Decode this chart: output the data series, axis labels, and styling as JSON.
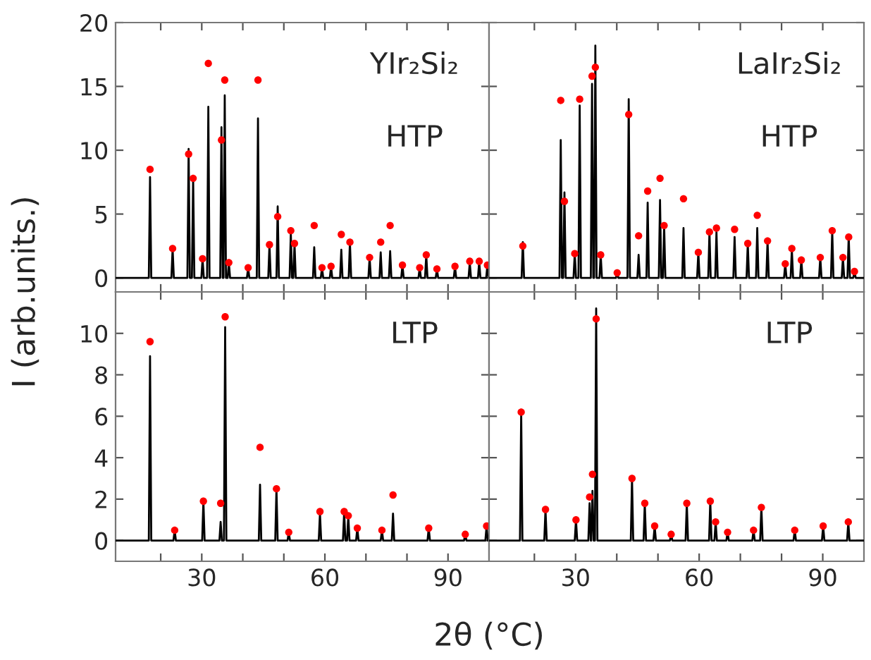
{
  "chart_data": [
    {
      "type": "line",
      "ylabel": "I (arb.units.)",
      "annotations": [
        "YIr₂Si₂",
        "HTP"
      ],
      "xlim": [
        9,
        100
      ],
      "ylim": [
        -1.1,
        20
      ],
      "xticks": [
        {
          "value": 20,
          "label": null
        },
        30,
        {
          "value": 40,
          "label": null
        },
        {
          "value": 50,
          "label": null
        },
        60,
        {
          "value": 70,
          "label": null
        },
        {
          "value": 80,
          "label": null
        },
        90
      ],
      "yticks": [
        0,
        5,
        10,
        15,
        20
      ],
      "tick_labels": "y",
      "series": [
        {
          "type": "scatter",
          "color": "#ff0000",
          "marker": "circle",
          "x": [
            17.4,
            22.9,
            26.8,
            27.9,
            30.2,
            31.6,
            34.8,
            35.6,
            36.6,
            41.3,
            43.7,
            46.5,
            48.5,
            51.7,
            52.6,
            57.4,
            59.3,
            61.5,
            64.0,
            66.1,
            70.9,
            73.6,
            75.9,
            78.9,
            83.1,
            84.7,
            87.3,
            91.7,
            95.3,
            97.6,
            99.6
          ],
          "values": [
            8.5,
            2.3,
            9.7,
            7.8,
            1.5,
            16.8,
            10.8,
            15.5,
            1.2,
            0.8,
            15.5,
            2.6,
            4.8,
            3.7,
            2.7,
            4.1,
            0.8,
            0.9,
            3.4,
            2.8,
            1.6,
            2.8,
            4.1,
            1.0,
            0.8,
            1.8,
            0.7,
            0.9,
            1.3,
            1.3,
            1.0
          ]
        },
        {
          "color": "#000000",
          "x": [
            9,
            17.1,
            17.4,
            17.7,
            22.6,
            22.9,
            23.2,
            26.5,
            26.8,
            27.1,
            27.6,
            27.9,
            28.2,
            29.9,
            30.2,
            30.5,
            31.3,
            31.6,
            31.9,
            34.5,
            34.8,
            35.1,
            35.3,
            35.6,
            35.9,
            36.3,
            36.6,
            36.9,
            41.0,
            41.3,
            41.6,
            43.4,
            43.7,
            44.0,
            46.2,
            46.5,
            46.8,
            48.2,
            48.5,
            48.8,
            51.4,
            51.7,
            52.0,
            52.3,
            52.6,
            52.9,
            57.1,
            57.4,
            57.7,
            59.0,
            59.3,
            59.6,
            61.2,
            61.5,
            61.8,
            63.7,
            64.0,
            64.3,
            65.8,
            66.1,
            66.4,
            70.6,
            70.9,
            71.2,
            73.3,
            73.6,
            73.9,
            75.6,
            75.9,
            76.2,
            78.6,
            78.9,
            79.2,
            82.8,
            83.1,
            83.4,
            84.4,
            84.7,
            85.0,
            87.0,
            87.3,
            87.6,
            91.4,
            91.7,
            92.0,
            95.0,
            95.3,
            95.6,
            97.3,
            97.6,
            97.9,
            99.3,
            99.6,
            99.9
          ],
          "values": [
            0,
            0,
            7.9,
            0,
            0,
            2.3,
            0,
            0,
            10.1,
            0,
            0,
            7.8,
            0,
            0,
            1.5,
            0,
            0,
            13.4,
            0,
            0,
            11.8,
            0,
            0,
            14.3,
            0,
            0,
            1.2,
            0,
            0,
            0.8,
            0,
            0,
            12.5,
            0,
            0,
            2.6,
            0,
            0,
            5.6,
            0,
            0,
            3.5,
            0,
            0,
            2.7,
            0,
            0,
            2.4,
            0,
            0,
            0.8,
            0,
            0,
            0.9,
            0,
            0,
            2.2,
            0,
            0,
            2.8,
            0,
            0,
            1.6,
            0,
            0,
            2.0,
            0,
            0,
            2.1,
            0,
            0,
            1.0,
            0,
            0,
            0.8,
            0,
            0,
            1.8,
            0,
            0,
            0.7,
            0,
            0,
            0.9,
            0,
            0,
            1.2,
            0,
            0,
            1.3,
            0,
            0,
            1.0,
            0
          ]
        }
      ]
    },
    {
      "type": "line",
      "annotations": [
        "LaIr₂Si₂",
        "HTP"
      ],
      "xlim": [
        9,
        100
      ],
      "ylim": [
        -1.1,
        20
      ],
      "xticks": [
        {
          "value": 20,
          "label": null
        },
        30,
        {
          "value": 40,
          "label": null
        },
        {
          "value": 50,
          "label": null
        },
        60,
        {
          "value": 70,
          "label": null
        },
        {
          "value": 80,
          "label": null
        },
        90
      ],
      "yticks": [
        0,
        5,
        10,
        15,
        20
      ],
      "tick_labels": false,
      "series": [
        {
          "type": "scatter",
          "color": "#ff0000",
          "marker": "circle",
          "x": [
            17.2,
            26.4,
            27.3,
            29.8,
            31.0,
            34.0,
            34.8,
            36.1,
            40.1,
            42.9,
            45.3,
            47.5,
            50.5,
            51.5,
            56.2,
            59.8,
            62.5,
            64.2,
            68.6,
            71.8,
            74.1,
            76.6,
            80.9,
            82.5,
            84.8,
            89.4,
            92.3,
            94.9,
            96.3,
            97.7
          ],
          "values": [
            2.5,
            13.9,
            6.0,
            1.9,
            14.0,
            15.8,
            16.5,
            1.8,
            0.4,
            12.8,
            3.3,
            6.8,
            7.8,
            4.1,
            6.2,
            2.0,
            3.6,
            3.9,
            3.8,
            2.7,
            4.9,
            2.9,
            1.1,
            2.3,
            1.4,
            1.6,
            3.7,
            1.6,
            3.2,
            0.5
          ]
        },
        {
          "color": "#000000",
          "x": [
            9,
            16.9,
            17.2,
            17.5,
            26.1,
            26.4,
            26.7,
            27.0,
            27.3,
            27.6,
            29.5,
            29.8,
            30.1,
            30.7,
            31.0,
            31.3,
            33.7,
            34.0,
            34.3,
            34.5,
            34.8,
            35.1,
            35.8,
            36.1,
            36.4,
            39.8,
            40.1,
            40.4,
            42.6,
            42.9,
            43.2,
            45.0,
            45.3,
            45.6,
            47.2,
            47.5,
            47.8,
            50.2,
            50.5,
            50.8,
            51.2,
            51.5,
            51.8,
            55.9,
            56.2,
            56.5,
            59.5,
            59.8,
            60.1,
            62.2,
            62.5,
            62.8,
            63.9,
            64.2,
            64.5,
            68.3,
            68.6,
            68.9,
            71.5,
            71.8,
            72.1,
            73.8,
            74.1,
            74.4,
            76.3,
            76.6,
            76.9,
            80.6,
            80.9,
            81.2,
            82.2,
            82.5,
            82.8,
            84.5,
            84.8,
            85.1,
            89.1,
            89.4,
            89.7,
            92.0,
            92.3,
            92.6,
            94.6,
            94.9,
            95.2,
            96.0,
            96.3,
            96.6,
            97.4,
            97.7,
            98.0,
            100
          ],
          "values": [
            0,
            0,
            2.8,
            0,
            0,
            10.8,
            0,
            0,
            6.7,
            0,
            0,
            1.9,
            0,
            0,
            13.5,
            0,
            0,
            15.2,
            0,
            0,
            18.2,
            0,
            0,
            1.8,
            0,
            0,
            0.4,
            0,
            0,
            14.0,
            0,
            0,
            1.8,
            0,
            0,
            5.9,
            0,
            0,
            6.1,
            0,
            0,
            4.1,
            0,
            0,
            3.9,
            0,
            0,
            2.0,
            0,
            0,
            3.6,
            0,
            0,
            3.6,
            0,
            0,
            3.2,
            0,
            0,
            2.7,
            0,
            0,
            3.9,
            0,
            0,
            2.9,
            0,
            0,
            1.1,
            0,
            0,
            2.2,
            0,
            0,
            1.4,
            0,
            0,
            1.6,
            0,
            0,
            3.7,
            0,
            0,
            1.6,
            0,
            0,
            3.3,
            0,
            0,
            0.5,
            0,
            0
          ]
        }
      ]
    },
    {
      "type": "line",
      "xlabel": "2θ (°C)",
      "annotations": [
        "LTP"
      ],
      "xlim": [
        9,
        100
      ],
      "ylim": [
        -1,
        12
      ],
      "xticks": [
        {
          "value": 20,
          "label": null
        },
        30,
        {
          "value": 40,
          "label": null
        },
        {
          "value": 50,
          "label": null
        },
        60,
        {
          "value": 70,
          "label": null
        },
        {
          "value": 80,
          "label": null
        },
        90
      ],
      "yticks": [
        0,
        2,
        4,
        6,
        8,
        10
      ],
      "series": [
        {
          "type": "scatter",
          "color": "#ff0000",
          "marker": "circle",
          "x": [
            17.4,
            23.4,
            30.4,
            34.6,
            35.7,
            44.2,
            48.2,
            51.2,
            58.8,
            64.7,
            65.7,
            67.9,
            73.9,
            76.6,
            85.3,
            94.2,
            99.4
          ],
          "values": [
            9.6,
            0.5,
            1.9,
            1.8,
            10.8,
            4.5,
            2.5,
            0.4,
            1.4,
            1.4,
            1.2,
            0.6,
            0.5,
            2.2,
            0.6,
            0.3,
            0.7
          ]
        },
        {
          "color": "#000000",
          "x": [
            9,
            17.1,
            17.4,
            17.7,
            23.1,
            23.4,
            23.7,
            30.1,
            30.4,
            30.7,
            34.3,
            34.6,
            34.9,
            35.4,
            35.7,
            36.0,
            43.9,
            44.2,
            44.5,
            47.9,
            48.2,
            48.5,
            50.9,
            51.2,
            51.5,
            58.5,
            58.8,
            59.1,
            64.4,
            64.7,
            65.0,
            65.4,
            65.7,
            66.0,
            67.6,
            67.9,
            68.2,
            73.6,
            73.9,
            74.2,
            76.3,
            76.6,
            76.9,
            85.0,
            85.3,
            85.6,
            93.9,
            94.2,
            94.5,
            99.1,
            99.4,
            99.7
          ],
          "values": [
            0,
            0,
            8.9,
            0,
            0,
            0.5,
            0,
            0,
            1.9,
            0,
            0,
            0.9,
            0,
            0,
            10.3,
            0,
            0,
            2.7,
            0,
            0,
            2.5,
            0,
            0,
            0.4,
            0,
            0,
            1.3,
            0,
            0,
            1.4,
            0,
            0,
            1.2,
            0,
            0,
            0.6,
            0,
            0,
            0.5,
            0,
            0,
            1.3,
            0,
            0,
            0.6,
            0,
            0,
            0.3,
            0,
            0,
            0.7,
            0
          ]
        }
      ]
    },
    {
      "type": "line",
      "annotations": [
        "LTP"
      ],
      "xlim": [
        9,
        100
      ],
      "ylim": [
        -1,
        12
      ],
      "xticks": [
        {
          "value": 20,
          "label": null
        },
        30,
        {
          "value": 40,
          "label": null
        },
        {
          "value": 50,
          "label": null
        },
        60,
        {
          "value": 70,
          "label": null
        },
        {
          "value": 80,
          "label": null
        },
        90
      ],
      "yticks": [
        0,
        2,
        4,
        6,
        8,
        10
      ],
      "tick_labels": "x",
      "series": [
        {
          "type": "scatter",
          "color": "#ff0000",
          "marker": "circle",
          "x": [
            16.8,
            22.7,
            30.1,
            33.4,
            34.1,
            35.0,
            43.7,
            46.8,
            49.2,
            53.2,
            57.0,
            62.7,
            64.0,
            66.9,
            73.2,
            75.1,
            83.2,
            90.1,
            96.2
          ],
          "values": [
            6.2,
            1.5,
            1.0,
            2.1,
            3.2,
            10.7,
            3.0,
            1.8,
            0.7,
            0.3,
            1.8,
            1.9,
            0.9,
            0.4,
            0.5,
            1.6,
            0.5,
            0.7,
            0.9
          ]
        },
        {
          "color": "#000000",
          "x": [
            9,
            16.5,
            16.8,
            17.1,
            22.4,
            22.7,
            23.0,
            29.8,
            30.1,
            30.4,
            33.1,
            33.4,
            33.7,
            33.8,
            34.1,
            34.4,
            34.7,
            35.0,
            35.3,
            43.4,
            43.7,
            44.0,
            46.5,
            46.8,
            47.1,
            48.9,
            49.2,
            49.5,
            52.9,
            53.2,
            53.5,
            56.7,
            57.0,
            57.3,
            62.4,
            62.7,
            63.0,
            63.7,
            64.0,
            64.3,
            66.6,
            66.9,
            67.2,
            72.9,
            73.2,
            73.5,
            74.8,
            75.1,
            75.4,
            82.9,
            83.2,
            83.5,
            89.8,
            90.1,
            90.4,
            95.9,
            96.2,
            96.5,
            100
          ],
          "values": [
            0,
            0,
            6.2,
            0,
            0,
            1.5,
            0,
            0,
            1.0,
            0,
            0,
            1.8,
            0,
            0,
            2.4,
            0,
            0,
            11.2,
            0,
            0,
            3.0,
            0,
            0,
            1.8,
            0,
            0,
            0.7,
            0,
            0,
            0.3,
            0,
            0,
            1.8,
            0,
            0,
            1.9,
            0,
            0,
            0.9,
            0,
            0,
            0.4,
            0,
            0,
            0.5,
            0,
            0,
            1.6,
            0,
            0,
            0.5,
            0,
            0,
            0.7,
            0,
            0,
            0.9,
            0,
            0
          ]
        }
      ]
    }
  ]
}
